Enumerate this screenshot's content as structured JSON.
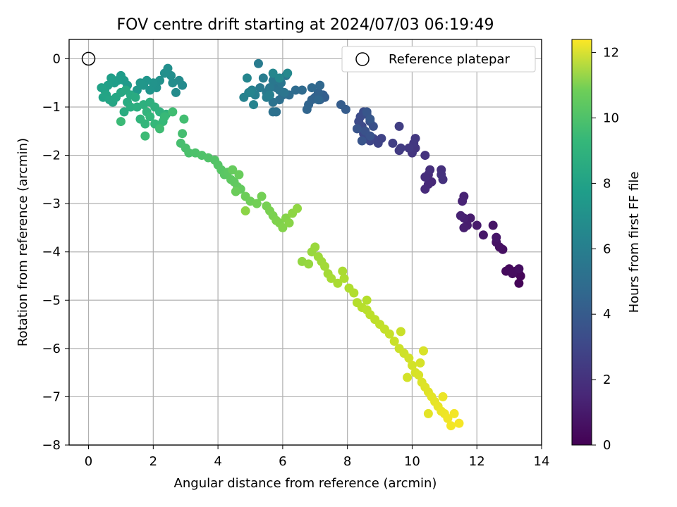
{
  "chart_data": {
    "type": "scatter",
    "title": "FOV centre drift starting at 2024/07/03 06:19:49",
    "xlabel": "Angular distance from reference (arcmin)",
    "ylabel": "Rotation from reference (arcmin)",
    "xlim": [
      -0.6,
      14.0
    ],
    "ylim": [
      -8.0,
      0.4
    ],
    "xticks": [
      0,
      2,
      4,
      6,
      8,
      10,
      12,
      14
    ],
    "yticks": [
      0,
      -1,
      -2,
      -3,
      -4,
      -5,
      -6,
      -7,
      -8
    ],
    "grid": true,
    "legend": {
      "position": "top-right",
      "label": "Reference platepar"
    },
    "reference_point": {
      "x": 0,
      "y": 0
    },
    "colorbar": {
      "label": "Hours from first FF file",
      "range": [
        0,
        12.4
      ],
      "ticks": [
        0,
        2,
        4,
        6,
        8,
        10,
        12
      ],
      "colormap": "viridis"
    },
    "points": [
      [
        13.3,
        -4.65,
        0.1
      ],
      [
        13.3,
        -4.45,
        0.15
      ],
      [
        13.35,
        -4.5,
        0.2
      ],
      [
        13.2,
        -4.4,
        0.25
      ],
      [
        13.0,
        -4.35,
        0.3
      ],
      [
        12.9,
        -4.4,
        0.35
      ],
      [
        13.1,
        -4.45,
        0.4
      ],
      [
        13.3,
        -4.35,
        0.45
      ],
      [
        12.8,
        -3.95,
        0.5
      ],
      [
        12.7,
        -3.9,
        0.55
      ],
      [
        12.6,
        -3.8,
        0.6
      ],
      [
        12.5,
        -3.45,
        0.7
      ],
      [
        12.6,
        -3.7,
        0.75
      ],
      [
        12.2,
        -3.65,
        0.8
      ],
      [
        12.0,
        -3.45,
        0.9
      ],
      [
        11.8,
        -3.3,
        0.95
      ],
      [
        11.7,
        -3.45,
        1.0
      ],
      [
        11.6,
        -3.5,
        1.05
      ],
      [
        11.6,
        -3.3,
        1.1
      ],
      [
        11.5,
        -3.25,
        1.15
      ],
      [
        11.6,
        -2.85,
        1.2
      ],
      [
        11.55,
        -2.95,
        1.25
      ],
      [
        10.6,
        -2.55,
        1.4
      ],
      [
        10.5,
        -2.6,
        1.45
      ],
      [
        10.4,
        -2.7,
        1.5
      ],
      [
        10.5,
        -2.4,
        1.55
      ],
      [
        10.4,
        -2.45,
        1.6
      ],
      [
        10.55,
        -2.3,
        1.65
      ],
      [
        10.9,
        -2.3,
        1.7
      ],
      [
        10.95,
        -2.5,
        1.75
      ],
      [
        10.9,
        -2.4,
        1.8
      ],
      [
        10.4,
        -2.0,
        1.85
      ],
      [
        10.1,
        -1.85,
        1.9
      ],
      [
        10.0,
        -1.95,
        1.95
      ],
      [
        10.05,
        -1.75,
        2.0
      ],
      [
        10.1,
        -1.65,
        2.05
      ],
      [
        9.9,
        -1.85,
        2.1
      ],
      [
        9.6,
        -1.9,
        2.15
      ],
      [
        9.65,
        -1.85,
        2.2
      ],
      [
        9.6,
        -1.4,
        2.3
      ],
      [
        9.4,
        -1.75,
        2.35
      ],
      [
        9.05,
        -1.65,
        2.5
      ],
      [
        8.95,
        -1.75,
        2.55
      ],
      [
        8.8,
        -1.65,
        2.6
      ],
      [
        8.7,
        -1.7,
        2.65
      ],
      [
        8.6,
        -1.6,
        2.7
      ],
      [
        8.5,
        -1.55,
        2.75
      ],
      [
        8.45,
        -1.4,
        2.8
      ],
      [
        8.35,
        -1.3,
        2.85
      ],
      [
        8.4,
        -1.2,
        2.9
      ],
      [
        8.5,
        -1.1,
        2.95
      ],
      [
        8.6,
        -1.15,
        3.0
      ],
      [
        8.7,
        -1.3,
        3.05
      ],
      [
        8.8,
        -1.4,
        3.1
      ],
      [
        8.55,
        -1.5,
        3.15
      ],
      [
        8.7,
        -1.6,
        3.2
      ],
      [
        8.45,
        -1.7,
        3.25
      ],
      [
        8.3,
        -1.45,
        3.3
      ],
      [
        8.6,
        -1.1,
        3.35
      ],
      [
        8.7,
        -1.25,
        3.4
      ],
      [
        7.95,
        -1.05,
        3.6
      ],
      [
        7.8,
        -0.95,
        3.65
      ],
      [
        7.3,
        -0.8,
        3.7
      ],
      [
        7.25,
        -0.75,
        3.75
      ],
      [
        7.15,
        -0.85,
        3.8
      ],
      [
        7.0,
        -0.8,
        3.85
      ],
      [
        7.1,
        -0.7,
        3.9
      ],
      [
        6.9,
        -0.85,
        3.95
      ],
      [
        6.8,
        -0.95,
        4.0
      ],
      [
        6.75,
        -1.05,
        4.05
      ],
      [
        7.1,
        -0.85,
        4.1
      ],
      [
        7.15,
        -0.55,
        4.15
      ],
      [
        6.9,
        -0.6,
        4.2
      ],
      [
        6.6,
        -0.65,
        4.3
      ],
      [
        6.4,
        -0.65,
        4.35
      ],
      [
        6.2,
        -0.75,
        4.4
      ],
      [
        6.0,
        -0.75,
        4.45
      ],
      [
        5.9,
        -0.85,
        4.5
      ],
      [
        5.8,
        -1.1,
        4.55
      ],
      [
        5.7,
        -1.1,
        4.6
      ],
      [
        5.7,
        -0.9,
        4.65
      ],
      [
        5.8,
        -0.6,
        4.7
      ],
      [
        5.9,
        -0.65,
        4.75
      ],
      [
        6.05,
        -0.7,
        4.8
      ],
      [
        5.95,
        -0.5,
        4.85
      ],
      [
        6.1,
        -0.35,
        4.9
      ],
      [
        5.7,
        -0.45,
        4.95
      ],
      [
        5.6,
        -0.6,
        5.0
      ],
      [
        5.5,
        -0.7,
        5.05
      ],
      [
        5.3,
        -0.6,
        5.1
      ],
      [
        5.25,
        -0.1,
        5.15
      ],
      [
        5.4,
        -0.4,
        5.2
      ],
      [
        5.5,
        -0.8,
        5.25
      ],
      [
        5.6,
        -0.75,
        5.3
      ],
      [
        5.15,
        -0.75,
        5.35
      ],
      [
        5.05,
        -0.65,
        5.4
      ],
      [
        4.95,
        -0.7,
        5.45
      ],
      [
        4.8,
        -0.8,
        5.5
      ],
      [
        5.1,
        -0.95,
        5.55
      ],
      [
        5.0,
        -0.7,
        5.6
      ],
      [
        4.9,
        -0.4,
        5.65
      ],
      [
        5.7,
        -0.3,
        5.7
      ],
      [
        5.9,
        -0.4,
        5.75
      ],
      [
        6.15,
        -0.3,
        5.8
      ],
      [
        2.9,
        -0.55,
        5.9
      ],
      [
        2.8,
        -0.45,
        5.95
      ],
      [
        2.7,
        -0.7,
        6.0
      ],
      [
        2.6,
        -0.5,
        6.05
      ],
      [
        2.55,
        -0.35,
        6.1
      ],
      [
        2.45,
        -0.2,
        6.15
      ],
      [
        2.35,
        -0.3,
        6.2
      ],
      [
        2.2,
        -0.45,
        6.25
      ],
      [
        2.1,
        -0.6,
        6.3
      ],
      [
        2.0,
        -0.5,
        6.35
      ],
      [
        1.9,
        -0.65,
        6.4
      ],
      [
        1.8,
        -0.45,
        6.45
      ],
      [
        1.7,
        -0.55,
        6.5
      ],
      [
        1.6,
        -0.5,
        6.55
      ],
      [
        1.5,
        -0.65,
        6.6
      ],
      [
        1.4,
        -0.75,
        6.65
      ],
      [
        1.2,
        -0.55,
        6.7
      ],
      [
        1.1,
        -0.45,
        6.75
      ],
      [
        1.0,
        -0.35,
        6.8
      ],
      [
        0.9,
        -0.45,
        6.85
      ],
      [
        0.8,
        -0.5,
        6.9
      ],
      [
        0.7,
        -0.4,
        6.95
      ],
      [
        0.6,
        -0.55,
        7.0
      ],
      [
        0.5,
        -0.65,
        7.05
      ],
      [
        0.4,
        -0.6,
        7.1
      ],
      [
        0.45,
        -0.8,
        7.15
      ],
      [
        0.55,
        -0.75,
        7.2
      ],
      [
        0.65,
        -0.85,
        7.25
      ],
      [
        0.75,
        -0.9,
        7.3
      ],
      [
        0.85,
        -0.8,
        7.35
      ],
      [
        1.0,
        -0.7,
        7.4
      ],
      [
        1.15,
        -0.65,
        7.45
      ],
      [
        1.3,
        -0.75,
        7.5
      ],
      [
        1.45,
        -0.8,
        7.55
      ],
      [
        1.2,
        -0.9,
        7.6
      ],
      [
        1.1,
        -1.1,
        7.65
      ],
      [
        1.3,
        -1.0,
        7.7
      ],
      [
        1.5,
        -1.0,
        7.75
      ],
      [
        1.7,
        -0.95,
        7.8
      ],
      [
        1.9,
        -0.9,
        7.85
      ],
      [
        2.05,
        -1.0,
        7.9
      ],
      [
        2.2,
        -1.1,
        7.95
      ],
      [
        2.4,
        -1.15,
        8.0
      ],
      [
        1.8,
        -1.1,
        8.05
      ],
      [
        1.6,
        -1.25,
        8.1
      ],
      [
        1.75,
        -1.35,
        8.15
      ],
      [
        1.9,
        -1.2,
        8.2
      ],
      [
        2.05,
        -1.35,
        8.25
      ],
      [
        2.3,
        -1.3,
        8.3
      ],
      [
        2.35,
        -1.2,
        8.35
      ],
      [
        1.0,
        -1.3,
        8.4
      ],
      [
        1.75,
        -1.6,
        8.45
      ],
      [
        2.2,
        -1.45,
        8.5
      ],
      [
        2.6,
        -1.1,
        8.55
      ],
      [
        2.95,
        -1.25,
        8.6
      ],
      [
        2.9,
        -1.55,
        8.65
      ],
      [
        2.85,
        -1.75,
        8.7
      ],
      [
        3.0,
        -1.85,
        8.75
      ],
      [
        3.1,
        -1.95,
        8.8
      ],
      [
        3.3,
        -1.95,
        8.85
      ],
      [
        3.5,
        -2.0,
        8.9
      ],
      [
        3.7,
        -2.05,
        8.95
      ],
      [
        3.9,
        -2.1,
        9.0
      ],
      [
        4.0,
        -2.2,
        9.05
      ],
      [
        4.1,
        -2.3,
        9.1
      ],
      [
        4.2,
        -2.4,
        9.15
      ],
      [
        4.3,
        -2.35,
        9.2
      ],
      [
        4.4,
        -2.5,
        9.25
      ],
      [
        4.5,
        -2.55,
        9.3
      ],
      [
        4.6,
        -2.65,
        9.35
      ],
      [
        4.7,
        -2.7,
        9.4
      ],
      [
        4.45,
        -2.3,
        9.45
      ],
      [
        4.65,
        -2.4,
        9.5
      ],
      [
        4.55,
        -2.75,
        9.55
      ],
      [
        4.85,
        -2.85,
        9.6
      ],
      [
        5.0,
        -2.95,
        9.65
      ],
      [
        5.2,
        -3.0,
        9.7
      ],
      [
        5.35,
        -2.85,
        9.75
      ],
      [
        5.5,
        -3.05,
        9.8
      ],
      [
        5.6,
        -3.15,
        9.85
      ],
      [
        5.7,
        -3.25,
        9.9
      ],
      [
        5.8,
        -3.35,
        9.95
      ],
      [
        5.9,
        -3.4,
        10.0
      ],
      [
        6.0,
        -3.5,
        10.05
      ],
      [
        6.1,
        -3.3,
        10.1
      ],
      [
        6.2,
        -3.4,
        10.15
      ],
      [
        4.85,
        -3.15,
        10.2
      ],
      [
        6.3,
        -3.2,
        10.25
      ],
      [
        6.45,
        -3.1,
        10.3
      ],
      [
        6.6,
        -4.2,
        10.35
      ],
      [
        6.8,
        -4.25,
        10.4
      ],
      [
        6.9,
        -4.0,
        10.45
      ],
      [
        7.0,
        -3.9,
        10.5
      ],
      [
        7.1,
        -4.1,
        10.55
      ],
      [
        7.2,
        -4.2,
        10.6
      ],
      [
        7.3,
        -4.3,
        10.65
      ],
      [
        7.4,
        -4.45,
        10.7
      ],
      [
        7.5,
        -4.55,
        10.75
      ],
      [
        7.7,
        -4.65,
        10.8
      ],
      [
        7.9,
        -4.55,
        10.85
      ],
      [
        8.05,
        -4.75,
        10.9
      ],
      [
        8.2,
        -4.85,
        10.95
      ],
      [
        8.3,
        -5.05,
        11.0
      ],
      [
        8.45,
        -5.15,
        11.05
      ],
      [
        8.6,
        -5.2,
        11.1
      ],
      [
        8.7,
        -5.3,
        11.15
      ],
      [
        8.85,
        -5.4,
        11.2
      ],
      [
        9.0,
        -5.5,
        11.25
      ],
      [
        9.15,
        -5.6,
        11.3
      ],
      [
        9.3,
        -5.7,
        11.35
      ],
      [
        9.45,
        -5.85,
        11.4
      ],
      [
        9.6,
        -6.0,
        11.45
      ],
      [
        9.75,
        -6.1,
        11.5
      ],
      [
        9.9,
        -6.2,
        11.55
      ],
      [
        10.0,
        -6.35,
        11.6
      ],
      [
        10.1,
        -6.5,
        11.65
      ],
      [
        10.2,
        -6.55,
        11.7
      ],
      [
        10.3,
        -6.7,
        11.75
      ],
      [
        10.4,
        -6.8,
        11.8
      ],
      [
        10.5,
        -6.9,
        11.85
      ],
      [
        10.6,
        -7.0,
        11.9
      ],
      [
        10.7,
        -7.1,
        11.95
      ],
      [
        10.8,
        -7.2,
        12.0
      ],
      [
        10.9,
        -7.3,
        12.05
      ],
      [
        11.0,
        -7.35,
        12.1
      ],
      [
        11.1,
        -7.45,
        12.15
      ],
      [
        11.2,
        -7.6,
        12.2
      ],
      [
        11.45,
        -7.55,
        12.25
      ],
      [
        9.65,
        -5.65,
        11.4
      ],
      [
        10.35,
        -6.05,
        11.7
      ],
      [
        10.5,
        -7.35,
        11.9
      ],
      [
        10.95,
        -7.0,
        12.05
      ],
      [
        11.3,
        -7.35,
        12.2
      ],
      [
        10.25,
        -6.3,
        11.65
      ],
      [
        9.85,
        -6.6,
        11.6
      ],
      [
        8.6,
        -5.0,
        11.0
      ],
      [
        7.85,
        -4.4,
        10.8
      ]
    ]
  }
}
